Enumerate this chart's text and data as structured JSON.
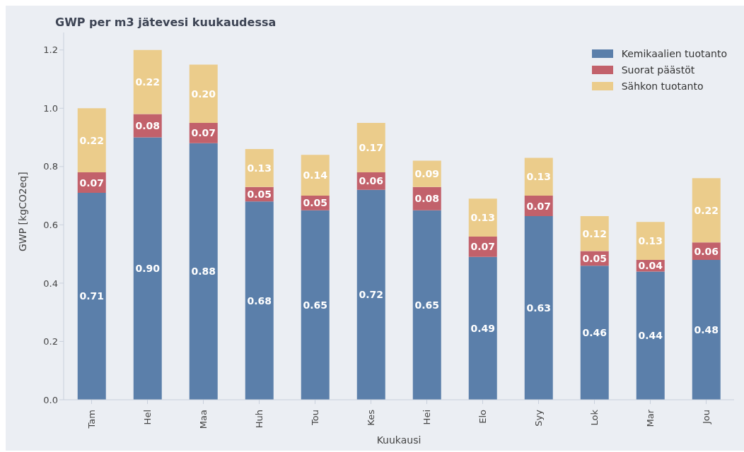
{
  "chart_data": {
    "type": "bar",
    "title": "GWP per m3 jätevesi kuukaudessa",
    "xlabel": "Kuukausi",
    "ylabel": "GWP [kgCO2eq]",
    "categories": [
      "Tam",
      "Hel",
      "Maa",
      "Huh",
      "Tou",
      "Kes",
      "Hei",
      "Elo",
      "Syy",
      "Lok",
      "Mar",
      "Jou"
    ],
    "series": [
      {
        "name": "Kemikaalien tuotanto",
        "color": "#5b7faa",
        "values": [
          0.71,
          0.9,
          0.88,
          0.68,
          0.65,
          0.72,
          0.65,
          0.49,
          0.63,
          0.46,
          0.44,
          0.48
        ],
        "value_labels": [
          "0.71",
          "0.90",
          "0.88",
          "0.68",
          "0.65",
          "0.72",
          "0.65",
          "0.49",
          "0.63",
          "0.46",
          "0.44",
          "0.48"
        ]
      },
      {
        "name": "Suorat päästöt",
        "color": "#c2616b",
        "values": [
          0.07,
          0.08,
          0.07,
          0.05,
          0.05,
          0.06,
          0.08,
          0.07,
          0.07,
          0.05,
          0.04,
          0.06
        ],
        "value_labels": [
          "0.07",
          "0.08",
          "0.07",
          "0.05",
          "0.05",
          "0.06",
          "0.08",
          "0.07",
          "0.07",
          "0.05",
          "0.04",
          "0.06"
        ]
      },
      {
        "name": "Sähkon tuotanto",
        "color": "#ebcc8b",
        "values": [
          0.22,
          0.22,
          0.2,
          0.13,
          0.14,
          0.17,
          0.09,
          0.13,
          0.13,
          0.12,
          0.13,
          0.22
        ],
        "value_labels": [
          "0.22",
          "0.22",
          "0.20",
          "0.13",
          "0.14",
          "0.17",
          "0.09",
          "0.13",
          "0.13",
          "0.12",
          "0.13",
          "0.22"
        ]
      }
    ],
    "stacked": true,
    "ylim": [
      0,
      1.26
    ],
    "yticks": [
      {
        "value": 0,
        "label": "0.0"
      },
      0.2,
      0.4,
      0.6,
      0.8,
      {
        "value": 1,
        "label": "1.0"
      },
      1.2
    ],
    "legend": "top right",
    "grid": false
  }
}
